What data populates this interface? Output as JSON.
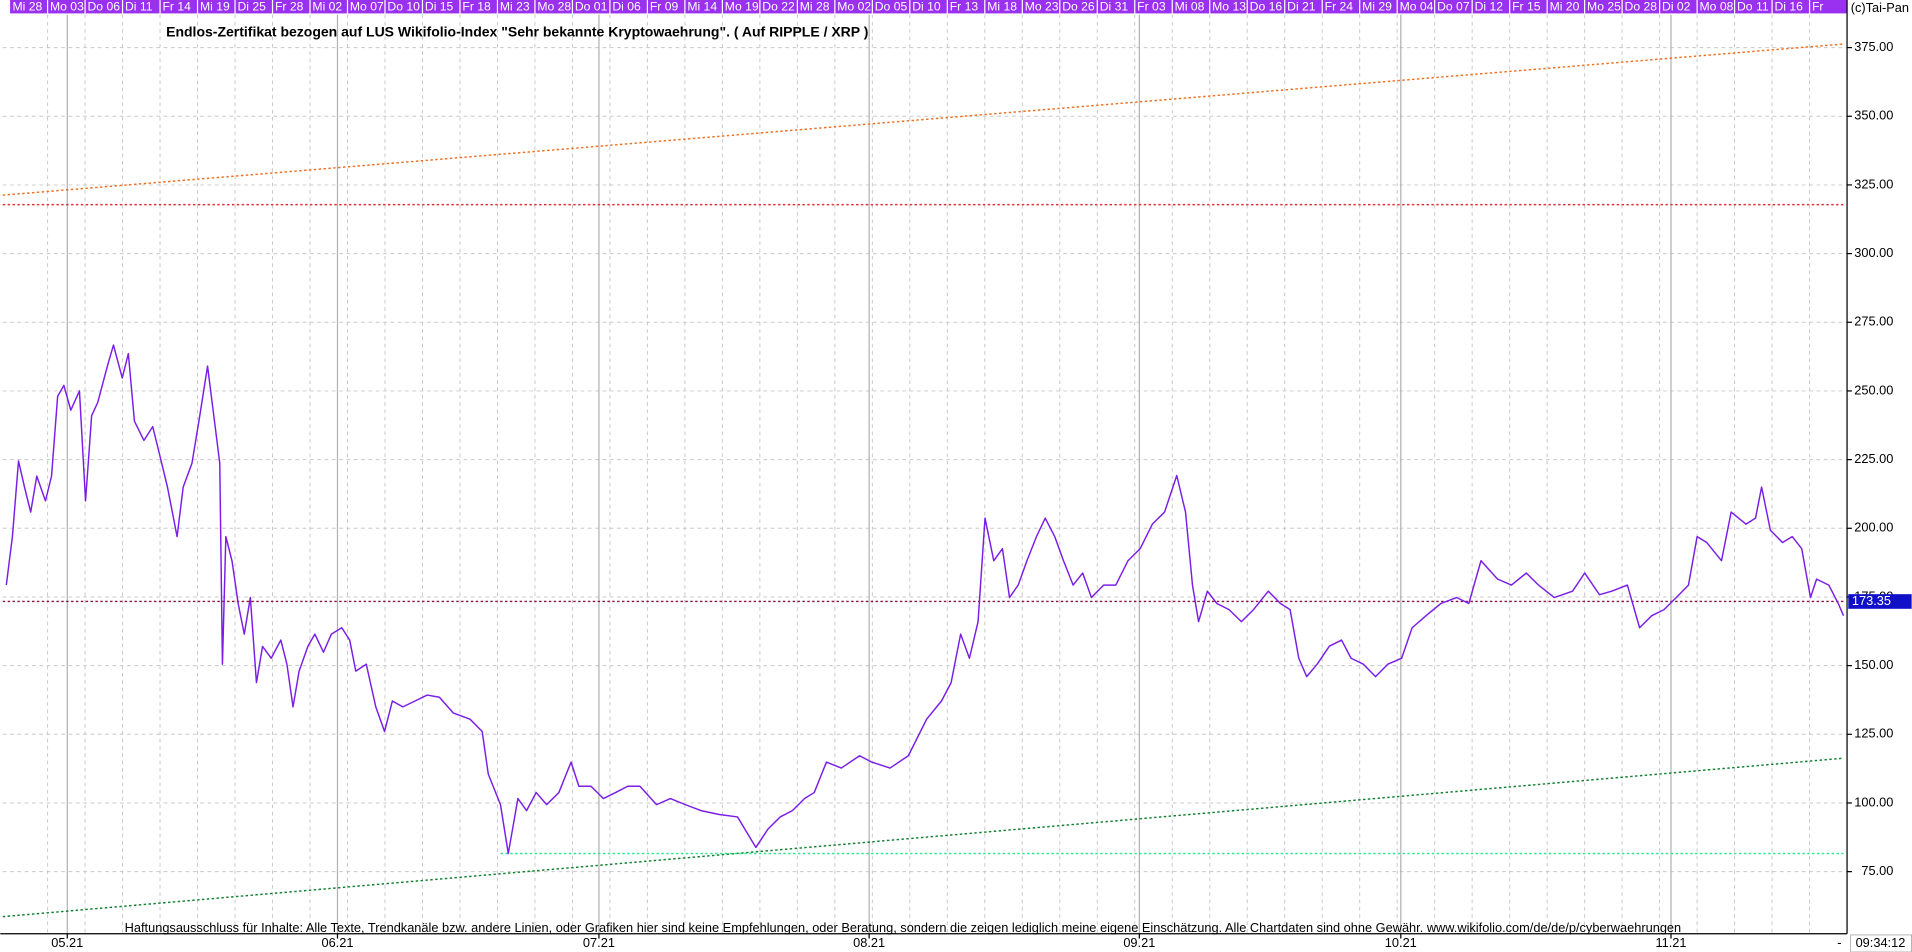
{
  "credit": "(c)Tai-Pan",
  "time": "09:34:12",
  "corner_mark": "-",
  "chart_data": {
    "type": "line",
    "title": "Endlos-Zertifikat bezogen auf LUS Wikifolio-Index \"Sehr bekannte Kryptowaehrung\". ( Auf RIPPLE / XRP )",
    "footnote": "Haftungsausschluss für Inhalte: Alle Texte, Trendkanäle bzw. andere Linien, oder Grafiken hier sind keine Empfehlungen, oder Beratung, sondern die zeigen lediglich meine eigene Einschätzung. Alle Chartdaten sind ohne Gewähr.  www.wikifolio.com/de/de/p/cyberwaehrungen",
    "top_dates": [
      "Mi 28",
      "Mo 03",
      "Do 06",
      "Di 11",
      "Fr 14",
      "Mi 19",
      "Di 25",
      "Fr 28",
      "Mi 02",
      "Mo 07",
      "Do 10",
      "Di 15",
      "Fr 18",
      "Mi 23",
      "Mo 28",
      "Do 01",
      "Di 06",
      "Fr 09",
      "Mi 14",
      "Mo 19",
      "Do 22",
      "Mi 28",
      "Mo 02",
      "Do 05",
      "Di 10",
      "Fr 13",
      "Mi 18",
      "Mo 23",
      "Do 26",
      "Di 31",
      "Fr 03",
      "Mi 08",
      "Mo 13",
      "Do 16",
      "Di 21",
      "Fr 24",
      "Mi 29",
      "Mo 04",
      "Do 07",
      "Di 12",
      "Fr 15",
      "Mi 20",
      "Mo 25",
      "Do 28",
      "Di 02",
      "Mo 08",
      "Do 11",
      "Di 16",
      "Fr"
    ],
    "color": "#7a1ee6",
    "x": [
      -7.0,
      -6.3,
      -5.6,
      -4.9,
      -4.2,
      -3.5,
      -2.5,
      -1.8,
      -1.1,
      -0.4,
      0.4,
      1.4,
      2.1,
      2.8,
      3.5,
      4.6,
      5.3,
      6.3,
      7.0,
      7.7,
      8.8,
      9.8,
      10.5,
      11.5,
      12.6,
      13.3,
      14.3,
      15.1,
      16.1,
      16.8,
      17.5,
      17.8,
      18.2,
      18.9,
      19.6,
      20.3,
      21.0,
      21.7,
      22.4,
      23.4,
      24.5,
      25.2,
      25.9,
      26.6,
      27.6,
      28.4,
      29.4,
      30.3,
      31.5,
      32.4,
      33.1,
      34.3,
      35.4,
      36.4,
      37.3,
      38.5,
      39.9,
      41.3,
      42.7,
      44.3,
      46.2,
      47.6,
      48.3,
      49.7,
      50.6,
      51.7,
      52.7,
      53.8,
      55.0,
      56.4,
      57.8,
      58.7,
      60.1,
      61.5,
      62.9,
      64.3,
      65.7,
      67.6,
      69.2,
      70.9,
      72.7,
      74.8,
      76.9,
      79.0,
      80.4,
      81.8,
      83.2,
      84.6,
      85.7,
      87.1,
      88.8,
      90.9,
      92.3,
      94.4,
      96.5,
      98.6,
      100.3,
      101.4,
      102.5,
      103.5,
      104.5,
      105.3,
      106.3,
      107.3,
      108.1,
      109.1,
      110.1,
      111.2,
      112.2,
      113.3,
      114.3,
      115.4,
      116.5,
      117.5,
      118.9,
      120.3,
      121.7,
      123.1,
      124.5,
      125.9,
      127.3,
      128.3,
      129.1,
      129.8,
      130.8,
      131.9,
      133.3,
      134.7,
      136.1,
      137.8,
      139.2,
      140.3,
      141.3,
      142.2,
      143.4,
      144.8,
      146.2,
      147.3,
      148.7,
      150.1,
      151.5,
      153.1,
      154.3,
      155.9,
      157.6,
      159.4,
      160.8,
      162.2,
      164.1,
      165.7,
      167.4,
      168.8,
      170.6,
      172.7,
      174.1,
      175.8,
      177.2,
      179.0,
      180.4,
      181.8,
      183.2,
      184.6,
      186.0,
      187.0,
      188.1,
      189.8,
      190.9,
      192.6,
      193.7,
      194.4,
      195.4,
      196.8,
      197.9,
      199.0,
      200.0,
      200.7,
      202.1,
      203.2,
      203.8
    ],
    "values": [
      179.3,
      197,
      224.5,
      214.8,
      205.9,
      219,
      210,
      219,
      248,
      252,
      243,
      250,
      210,
      241,
      245.8,
      259,
      266.7,
      254.7,
      263.6,
      239,
      232,
      237,
      228,
      215,
      197,
      215,
      223.7,
      239,
      259,
      241.4,
      223.7,
      150.5,
      197,
      188,
      172.6,
      161.5,
      174.8,
      143.8,
      157,
      152.7,
      159.3,
      150.5,
      135,
      148,
      157,
      161.5,
      154.9,
      161.5,
      163.8,
      159.3,
      148,
      150.5,
      135,
      126,
      137.1,
      135,
      137.1,
      139.3,
      138.5,
      132.7,
      130.5,
      126,
      110.5,
      99.4,
      81.6,
      101.6,
      97.2,
      103.8,
      99.4,
      103.8,
      114.9,
      106.1,
      106.1,
      101.6,
      103.8,
      106.1,
      106.1,
      99.4,
      101.6,
      99.4,
      97.2,
      95.8,
      94.9,
      83.8,
      90.5,
      94.9,
      97.2,
      101.6,
      103.8,
      114.9,
      112.7,
      117.2,
      114.9,
      112.7,
      117.2,
      130.5,
      137.1,
      143.8,
      161.5,
      152.7,
      166,
      203.7,
      188.2,
      192.6,
      174.8,
      179.3,
      188.2,
      197,
      203.7,
      197,
      188.2,
      179.3,
      183.7,
      174.8,
      179.3,
      179.3,
      188.2,
      192.6,
      201.5,
      205.9,
      219.2,
      205.9,
      179.3,
      166,
      177.1,
      172.6,
      170.4,
      166,
      170.4,
      177.1,
      172.6,
      170.4,
      152.7,
      146,
      150.5,
      157.1,
      159.3,
      152.7,
      150.5,
      146,
      150.5,
      152.7,
      163.8,
      168.2,
      172.6,
      174.8,
      172.6,
      188.2,
      181.5,
      179.3,
      183.7,
      179.3,
      174.8,
      177.1,
      183.7,
      175.8,
      177.1,
      179.3,
      163.8,
      168.2,
      170.4,
      174.8,
      179.3,
      197,
      194.8,
      188.2,
      205.9,
      201.5,
      203.7,
      215,
      199.3,
      194.8,
      197,
      192.6,
      174.8,
      181.5,
      179.3,
      172.6,
      168.2
    ],
    "lines": [
      {
        "x": [
          -7.4,
          203.8
        ],
        "values": [
          321.3,
          376.3
        ],
        "color": "#f07020"
      },
      {
        "x": [
          -7.4,
          203.8
        ],
        "values": [
          317.8,
          317.8
        ],
        "color": "#e0303a"
      },
      {
        "x": [
          -7.4,
          203.8
        ],
        "values": [
          58.6,
          116.3
        ],
        "color": "#108030"
      },
      {
        "x": [
          49.7,
          203.8
        ],
        "values": [
          81.6,
          81.6
        ],
        "color": "#30e890"
      },
      {
        "x": [
          -7.4,
          203.8
        ],
        "values": [
          173.35,
          173.35
        ],
        "color": "#8a1440"
      }
    ],
    "price_label_color": "#1010c8",
    "xlim": [
      -7.4,
      204.2
    ],
    "xticks": [
      {
        "value": 0,
        "label": "05.21"
      },
      {
        "value": 31,
        "label": "06.21"
      },
      {
        "value": 61,
        "label": "07.21"
      },
      {
        "value": 92,
        "label": "08.21"
      },
      {
        "value": 123,
        "label": "09.21"
      },
      {
        "value": 153,
        "label": "10.21"
      },
      {
        "value": 184,
        "label": "11.21"
      }
    ],
    "ylim": [
      52.4,
      387
    ],
    "yticks": [
      {
        "value": 75,
        "label": "75.00"
      },
      {
        "value": 100,
        "label": "100.00"
      },
      {
        "value": 125,
        "label": "125.00"
      },
      {
        "value": 150,
        "label": "150.00"
      },
      {
        "value": 175,
        "label": "175.00"
      },
      {
        "value": 200,
        "label": "200.00"
      },
      {
        "value": 225,
        "label": "225.00"
      },
      {
        "value": 250,
        "label": "250.00"
      },
      {
        "value": 275,
        "label": "275.00"
      },
      {
        "value": 300,
        "label": "300.00"
      },
      {
        "value": 325,
        "label": "325.00"
      },
      {
        "value": 350,
        "label": "350.00"
      },
      {
        "value": 375,
        "label": "375.00"
      }
    ],
    "grid": true,
    "top_bar_color": "#9a30f0"
  }
}
